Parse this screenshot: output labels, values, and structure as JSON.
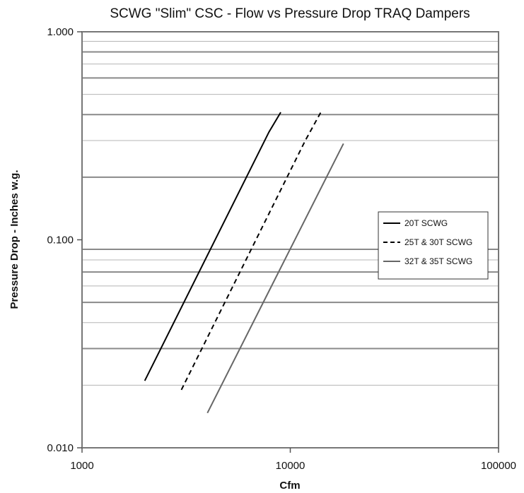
{
  "chart_data": {
    "type": "line",
    "title": "SCWG \"Slim\" CSC - Flow vs Pressure Drop TRAQ Dampers",
    "xlabel": "Cfm",
    "ylabel": "Pressure Drop - Inches w.g.",
    "x_scale": "log",
    "y_scale": "log",
    "xlim": [
      1000,
      100000
    ],
    "ylim": [
      0.01,
      1.0
    ],
    "x_tick_values": [
      1000,
      10000,
      100000
    ],
    "x_tick_labels": [
      "1000",
      "10000",
      "100000"
    ],
    "y_tick_values": [
      0.01,
      0.1,
      1.0
    ],
    "y_tick_labels": [
      "0.010",
      "0.100",
      "1.000"
    ],
    "y_gridlines": [
      0.02,
      0.03,
      0.04,
      0.05,
      0.06,
      0.07,
      0.08,
      0.09,
      0.2,
      0.3,
      0.4,
      0.5,
      0.6,
      0.7,
      0.8,
      0.9
    ],
    "grid": true,
    "legend_position": "right",
    "series": [
      {
        "name": "20T SCWG",
        "style": "solid",
        "color": "#000000",
        "x": [
          2000,
          7900,
          9000
        ],
        "y": [
          0.021,
          0.33,
          0.41
        ]
      },
      {
        "name": "25T & 30T SCWG",
        "style": "dashed",
        "color": "#000000",
        "x": [
          3000,
          11800,
          14200
        ],
        "y": [
          0.019,
          0.3,
          0.42
        ]
      },
      {
        "name": "32T & 35T SCWG",
        "style": "solid",
        "color": "#666666",
        "x": [
          4000,
          18000
        ],
        "y": [
          0.0147,
          0.29
        ]
      }
    ]
  }
}
